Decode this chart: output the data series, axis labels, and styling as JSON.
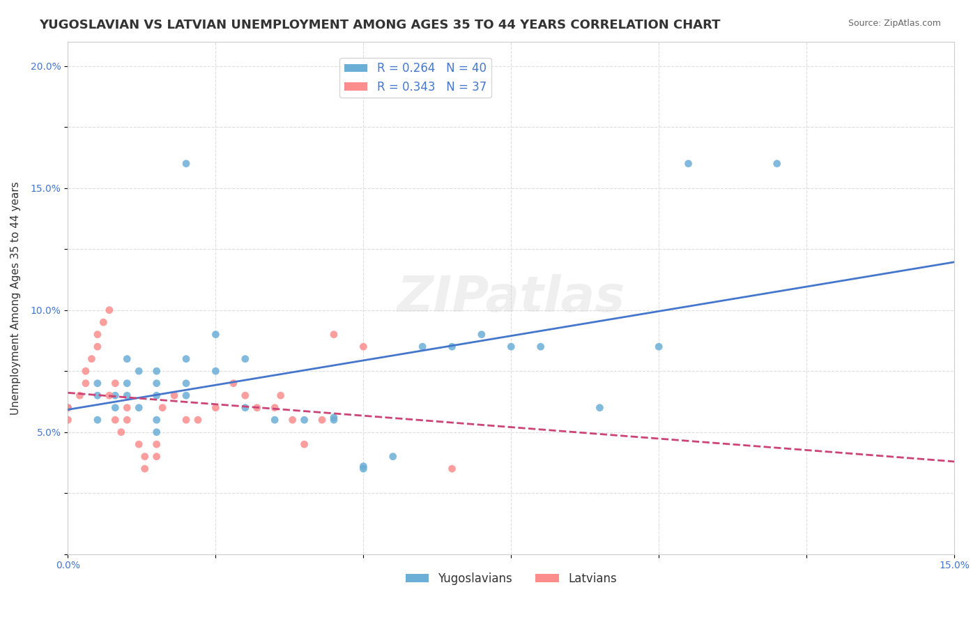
{
  "title": "YUGOSLAVIAN VS LATVIAN UNEMPLOYMENT AMONG AGES 35 TO 44 YEARS CORRELATION CHART",
  "source": "Source: ZipAtlas.com",
  "xlabel_label": "",
  "ylabel_label": "Unemployment Among Ages 35 to 44 years",
  "xlim": [
    0.0,
    0.15
  ],
  "ylim": [
    0.0,
    0.21
  ],
  "xticks": [
    0.0,
    0.025,
    0.05,
    0.075,
    0.1,
    0.125,
    0.15
  ],
  "yticks": [
    0.0,
    0.025,
    0.05,
    0.075,
    0.1,
    0.125,
    0.15,
    0.175,
    0.2
  ],
  "xtick_labels": [
    "0.0%",
    "",
    "",
    "",
    "",
    "",
    "15.0%"
  ],
  "ytick_labels": [
    "",
    "",
    "5.0%",
    "",
    "10.0%",
    "",
    "15.0%",
    "",
    "20.0%"
  ],
  "blue_R": 0.264,
  "blue_N": 40,
  "pink_R": 0.343,
  "pink_N": 37,
  "blue_color": "#6baed6",
  "pink_color": "#fc8d8d",
  "blue_line_color": "#4477cc",
  "pink_line_color": "#cc4477",
  "watermark": "ZIPatlas",
  "blue_points": [
    [
      0.0,
      0.06
    ],
    [
      0.005,
      0.055
    ],
    [
      0.005,
      0.07
    ],
    [
      0.005,
      0.065
    ],
    [
      0.008,
      0.06
    ],
    [
      0.008,
      0.065
    ],
    [
      0.01,
      0.065
    ],
    [
      0.01,
      0.07
    ],
    [
      0.01,
      0.08
    ],
    [
      0.012,
      0.075
    ],
    [
      0.012,
      0.06
    ],
    [
      0.015,
      0.075
    ],
    [
      0.015,
      0.07
    ],
    [
      0.015,
      0.065
    ],
    [
      0.015,
      0.055
    ],
    [
      0.015,
      0.05
    ],
    [
      0.02,
      0.065
    ],
    [
      0.02,
      0.07
    ],
    [
      0.02,
      0.08
    ],
    [
      0.02,
      0.16
    ],
    [
      0.025,
      0.09
    ],
    [
      0.025,
      0.075
    ],
    [
      0.03,
      0.08
    ],
    [
      0.03,
      0.06
    ],
    [
      0.035,
      0.055
    ],
    [
      0.04,
      0.055
    ],
    [
      0.045,
      0.055
    ],
    [
      0.045,
      0.056
    ],
    [
      0.05,
      0.035
    ],
    [
      0.05,
      0.036
    ],
    [
      0.055,
      0.04
    ],
    [
      0.06,
      0.085
    ],
    [
      0.065,
      0.085
    ],
    [
      0.07,
      0.09
    ],
    [
      0.075,
      0.085
    ],
    [
      0.08,
      0.085
    ],
    [
      0.09,
      0.06
    ],
    [
      0.1,
      0.085
    ],
    [
      0.105,
      0.16
    ],
    [
      0.12,
      0.16
    ]
  ],
  "pink_points": [
    [
      0.0,
      0.06
    ],
    [
      0.0,
      0.055
    ],
    [
      0.002,
      0.065
    ],
    [
      0.003,
      0.07
    ],
    [
      0.003,
      0.075
    ],
    [
      0.004,
      0.08
    ],
    [
      0.005,
      0.085
    ],
    [
      0.005,
      0.09
    ],
    [
      0.006,
      0.095
    ],
    [
      0.007,
      0.1
    ],
    [
      0.007,
      0.065
    ],
    [
      0.008,
      0.07
    ],
    [
      0.008,
      0.055
    ],
    [
      0.009,
      0.05
    ],
    [
      0.01,
      0.055
    ],
    [
      0.01,
      0.06
    ],
    [
      0.012,
      0.045
    ],
    [
      0.013,
      0.04
    ],
    [
      0.013,
      0.035
    ],
    [
      0.015,
      0.04
    ],
    [
      0.015,
      0.045
    ],
    [
      0.016,
      0.06
    ],
    [
      0.018,
      0.065
    ],
    [
      0.02,
      0.055
    ],
    [
      0.022,
      0.055
    ],
    [
      0.025,
      0.06
    ],
    [
      0.028,
      0.07
    ],
    [
      0.03,
      0.065
    ],
    [
      0.032,
      0.06
    ],
    [
      0.035,
      0.06
    ],
    [
      0.036,
      0.065
    ],
    [
      0.038,
      0.055
    ],
    [
      0.04,
      0.045
    ],
    [
      0.043,
      0.055
    ],
    [
      0.045,
      0.09
    ],
    [
      0.05,
      0.085
    ],
    [
      0.065,
      0.035
    ]
  ],
  "background_color": "#ffffff",
  "grid_color": "#dddddd",
  "title_fontsize": 13,
  "axis_label_fontsize": 11,
  "tick_fontsize": 10,
  "legend_fontsize": 12
}
